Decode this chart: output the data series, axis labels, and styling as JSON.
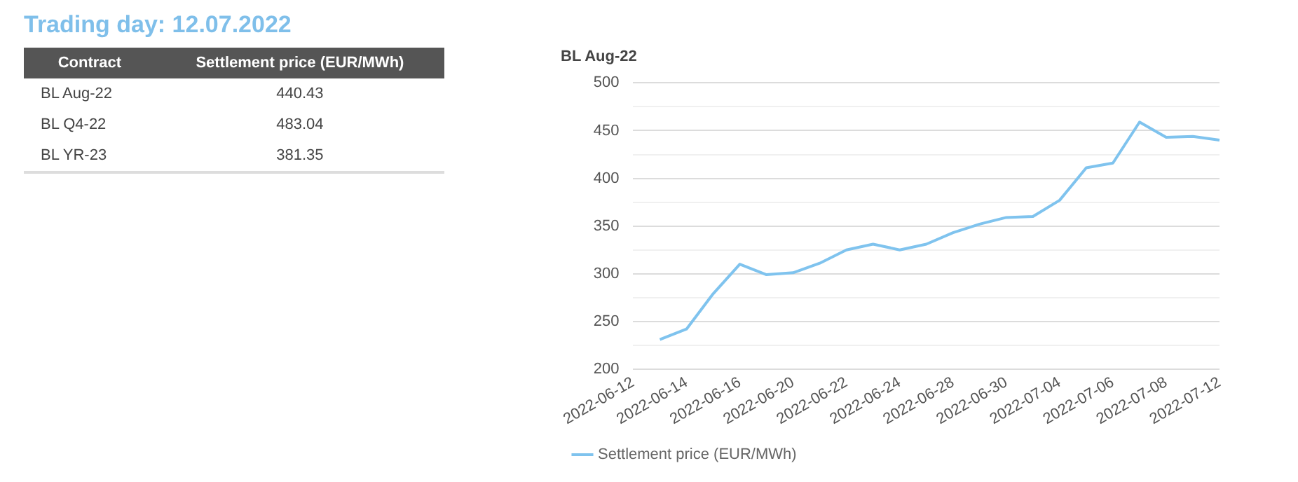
{
  "chart_data": [
    {
      "type": "other",
      "title": "Trading day: 12.07.2022",
      "annotations": [
        "Contract",
        "Settlement price (EUR/MWh)",
        "BL Aug-22",
        "440.43",
        "BL Q4-22",
        "483.04",
        "BL YR-23",
        "381.35"
      ]
    },
    {
      "type": "line",
      "title": "BL Aug-22",
      "categories": [
        "2022-06-12",
        null,
        "2022-06-14",
        null,
        "2022-06-16",
        null,
        "2022-06-20",
        null,
        "2022-06-22",
        null,
        "2022-06-24",
        null,
        "2022-06-28",
        null,
        "2022-06-30",
        null,
        "2022-07-04",
        null,
        "2022-07-06",
        null,
        "2022-07-08",
        null,
        "2022-07-12"
      ],
      "series": [
        {
          "name": "Settlement price (EUR/MWh)",
          "color": "#7fc3ee",
          "values": [
            null,
            231,
            242,
            279,
            310,
            299,
            301,
            311,
            325,
            331,
            325,
            331,
            343,
            352,
            359,
            360,
            377,
            411,
            416,
            459,
            443,
            444,
            440
          ]
        }
      ],
      "ylim": [
        200,
        500
      ],
      "yticks": [
        200,
        {
          "value": 225,
          "label": null
        },
        250,
        {
          "value": 275,
          "label": null
        },
        300,
        {
          "value": 325,
          "label": null
        },
        350,
        {
          "value": 375,
          "label": null
        },
        400,
        {
          "value": 425,
          "label": null
        },
        450,
        {
          "value": 475,
          "label": null
        },
        500
      ],
      "grid": "y",
      "legend": "bottom",
      "marker": "none",
      "line_style": "solid"
    }
  ]
}
